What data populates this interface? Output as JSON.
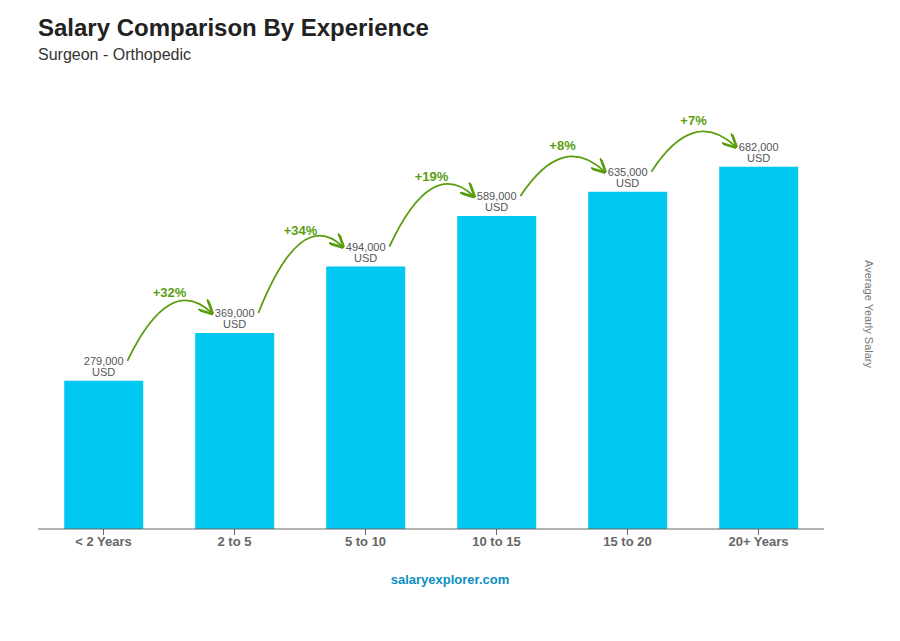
{
  "chart_data": {
    "type": "bar",
    "title": "Salary Comparison By Experience",
    "subtitle": "Surgeon - Orthopedic",
    "ylabel": "Average Yearly Salary",
    "categories": [
      "< 2 Years",
      "2 to 5",
      "5 to 10",
      "10 to 15",
      "15 to 20",
      "20+ Years"
    ],
    "values": [
      279000,
      369000,
      494000,
      589000,
      635000,
      682000
    ],
    "value_labels": [
      "279,000 USD",
      "369,000 USD",
      "494,000 USD",
      "589,000 USD",
      "635,000 USD",
      "682,000 USD"
    ],
    "data_labels": true,
    "annotations": [
      "+32%",
      "+34%",
      "+19%",
      "+8%",
      "+7%"
    ],
    "footer": "salaryexplorer.com",
    "color": "#00C8F0",
    "ylim": [
      0,
      800000
    ],
    "tick_labels": "x",
    "grid": false
  }
}
